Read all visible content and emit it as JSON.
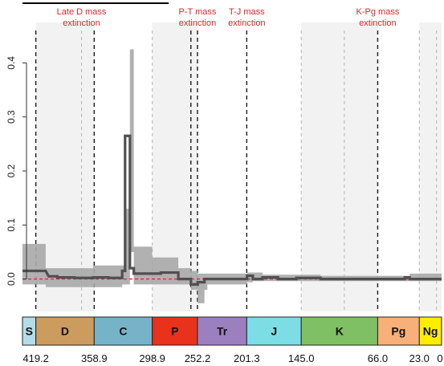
{
  "chart_data": {
    "type": "line",
    "title": "",
    "xlabel": "",
    "ylabel": "",
    "x_axis": "Time (Ma), reversed",
    "xlim": [
      433,
      0
    ],
    "ylim": [
      -0.06,
      0.46
    ],
    "yticks": [
      0.0,
      0.1,
      0.2,
      0.3,
      0.4
    ],
    "grid": false,
    "colors": {
      "line": "#505050",
      "band": "#a9a9a9",
      "zero_line": "#e0262b",
      "annotation": "#e0262b",
      "shade": "#f2f2f2"
    },
    "series": [
      {
        "values_x": [
          433,
          409,
          406,
          397,
          397,
          379,
          379,
          360,
          360,
          344,
          344,
          330,
          330,
          327,
          327,
          322,
          322,
          318,
          318,
          299,
          299,
          290,
          290,
          272,
          272,
          259,
          259,
          252,
          252,
          245,
          245,
          242,
          242,
          201,
          201,
          195,
          195,
          185,
          185,
          169,
          169,
          150,
          150,
          125,
          125,
          66,
          66,
          38,
          38,
          33,
          33,
          5,
          5,
          0
        ],
        "values_y": [
          0.015,
          0.015,
          0.005,
          0.005,
          0.003,
          0.003,
          0.002,
          0.002,
          0.003,
          0.003,
          0.002,
          0.002,
          0.015,
          0.015,
          0.265,
          0.265,
          0.02,
          0.02,
          0.01,
          0.01,
          0.01,
          0.01,
          0.012,
          0.012,
          0.0,
          0.0,
          -0.01,
          -0.01,
          -0.006,
          -0.006,
          0.0,
          0.0,
          0.0,
          0.0,
          0.006,
          0.006,
          0.0,
          0.0,
          0.003,
          0.003,
          0.0,
          0.0,
          0.002,
          0.002,
          0.0,
          0.0,
          0.0,
          0.0,
          0.003,
          0.003,
          0.0,
          0.0,
          0.0,
          0.0
        ]
      }
    ],
    "uncertainty_band": {
      "x": [
        433,
        419,
        409,
        397,
        379,
        360,
        344,
        330,
        327,
        322,
        318,
        299,
        290,
        272,
        259,
        252,
        245,
        242,
        201,
        195,
        185,
        169,
        150,
        125,
        66,
        38,
        33,
        5,
        0
      ],
      "low": [
        -0.01,
        -0.01,
        -0.015,
        -0.015,
        -0.015,
        -0.015,
        -0.015,
        -0.01,
        -0.01,
        0.05,
        -0.01,
        -0.01,
        -0.01,
        -0.01,
        -0.02,
        -0.045,
        -0.02,
        -0.01,
        -0.006,
        -0.004,
        -0.004,
        -0.004,
        -0.004,
        -0.004,
        -0.004,
        -0.004,
        -0.004,
        -0.004,
        -0.004
      ],
      "high": [
        0.065,
        0.065,
        0.02,
        0.02,
        0.02,
        0.025,
        0.025,
        0.025,
        0.13,
        0.425,
        0.06,
        0.04,
        0.04,
        0.02,
        0.015,
        0.01,
        0.01,
        0.01,
        0.012,
        0.012,
        0.008,
        0.008,
        0.008,
        0.006,
        0.006,
        0.006,
        0.01,
        0.01,
        0.01
      ]
    },
    "extinction_lines_ma": [
      419.2,
      372,
      358.9,
      298.9,
      259,
      252.2,
      201.3,
      145.0,
      100.5,
      66.0,
      23.0,
      5.3
    ],
    "extinction_line_styles": [
      "dashed-black",
      "dashed-gray",
      "dashed-black",
      "dashed-gray",
      "dashed-black",
      "dashed-black",
      "dashed-black",
      "dashed-gray",
      "dashed-gray",
      "dashed-black",
      "dashed-gray",
      "dashed-gray"
    ],
    "shaded_intervals_ma": [
      [
        419.2,
        358.9
      ],
      [
        298.9,
        252.2
      ],
      [
        145.0,
        66.0
      ],
      [
        23.0,
        0
      ]
    ],
    "annotations": [
      {
        "lines": [
          "Late D mass",
          "extinction"
        ],
        "at_ma": 372
      },
      {
        "lines": [
          "P-T mass",
          "extinction"
        ],
        "at_ma": 252.2
      },
      {
        "lines": [
          "T-J mass",
          "extinction"
        ],
        "at_ma": 201.3
      },
      {
        "lines": [
          "K-Pg mass",
          "extinction"
        ],
        "at_ma": 66.0
      }
    ],
    "periods": [
      {
        "label": "S",
        "start": 433,
        "end": 419.2,
        "color": "#b3dde6"
      },
      {
        "label": "D",
        "start": 419.2,
        "end": 358.9,
        "color": "#cc9b5e"
      },
      {
        "label": "C",
        "start": 358.9,
        "end": 298.9,
        "color": "#77b3c8"
      },
      {
        "label": "P",
        "start": 298.9,
        "end": 252.2,
        "color": "#e8321c"
      },
      {
        "label": "Tr",
        "start": 252.2,
        "end": 201.3,
        "color": "#9c7fbf"
      },
      {
        "label": "J",
        "start": 201.3,
        "end": 145.0,
        "color": "#7ddde5"
      },
      {
        "label": "K",
        "start": 145.0,
        "end": 66.0,
        "color": "#7fc064"
      },
      {
        "label": "Pg",
        "start": 66.0,
        "end": 23.0,
        "color": "#f7b07a"
      },
      {
        "label": "Ng",
        "start": 23.0,
        "end": 0,
        "color": "#ffed00"
      }
    ],
    "boundary_labels": [
      "419.2",
      "358.9",
      "298.9",
      "252.2",
      "201.3",
      "145.0",
      "66.0",
      "23.0",
      "0"
    ],
    "boundary_values": [
      419.2,
      358.9,
      298.9,
      252.2,
      201.3,
      145.0,
      66.0,
      23.0,
      0
    ]
  }
}
